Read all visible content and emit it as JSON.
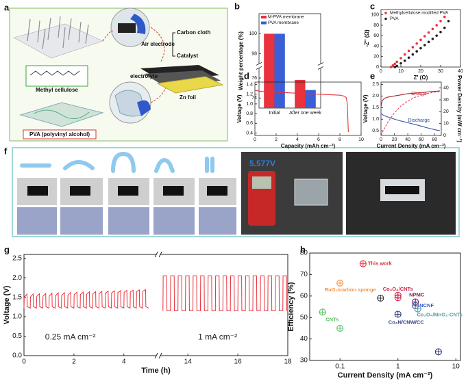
{
  "panel_labels": [
    "a",
    "b",
    "c",
    "d",
    "e",
    "f",
    "g",
    "h"
  ],
  "diagram": {
    "air_electrode": "Air electrode",
    "carbon_cloth": "Carbon cloth",
    "catalyst": "Catalyst",
    "electrolyte": "electrolyte",
    "zn_foil": "Zn foil",
    "methyl_cellulose": "Methyl cellulose",
    "pva": "PVA (polyvinyl alcohol)"
  },
  "photos": {
    "voltage_reading": "5.577V"
  },
  "chart_data": [
    {
      "type": "bar",
      "ylabel": "Weight percentage (%)",
      "categories": [
        "Initial",
        "After one week"
      ],
      "series": [
        {
          "name": "M-PVA membrane",
          "color": "#e8323c",
          "values": [
            100,
            75.8
          ]
        },
        {
          "name": "PVA membrane",
          "color": "#3a5fd6",
          "values": [
            100,
            74.8
          ]
        }
      ],
      "ylim": [
        73,
        102
      ],
      "ybreak": [
        77,
        97
      ],
      "yticks": [
        74,
        76,
        98,
        100
      ],
      "legend": "upper left"
    },
    {
      "type": "scatter",
      "xlabel": "Z' (Ω)",
      "ylabel": "-Z'' (Ω)",
      "series": [
        {
          "name": "Methylcellulose modified PVA",
          "color": "#e8323c",
          "x": [
            5,
            6,
            7,
            8,
            10,
            12,
            14,
            16,
            18,
            20,
            22,
            24,
            26,
            28,
            30,
            32
          ],
          "values": [
            0,
            3,
            6,
            10,
            17,
            24,
            31,
            38,
            45,
            52,
            59,
            66,
            73,
            80,
            88,
            96
          ]
        },
        {
          "name": "PVA",
          "color": "#222222",
          "x": [
            7,
            8,
            10,
            12,
            14,
            16,
            18,
            20,
            22,
            24,
            26,
            28,
            30,
            32,
            34
          ],
          "values": [
            0,
            2,
            7,
            12,
            18,
            24,
            30,
            36,
            42,
            48,
            54,
            60,
            67,
            75,
            88
          ]
        }
      ],
      "xlim": [
        0,
        40
      ],
      "xticks": [
        0,
        10,
        20,
        30,
        40
      ],
      "ylim": [
        0,
        110
      ],
      "yticks": [
        0,
        20,
        40,
        60,
        80,
        100
      ],
      "legend": "upper left"
    },
    {
      "type": "line",
      "xlabel": "Capacity (mAh cm⁻²)",
      "ylabel": "Voltage (V)",
      "x": [
        0,
        0.5,
        1,
        2,
        3,
        4,
        5,
        6,
        7,
        8,
        8.4,
        8.6,
        8.7,
        8.75,
        8.8
      ],
      "series": [
        {
          "color": "#e8323c",
          "values": [
            1.28,
            1.26,
            1.25,
            1.24,
            1.23,
            1.22,
            1.21,
            1.2,
            1.19,
            1.18,
            1.16,
            1.13,
            1.0,
            0.7,
            0.42
          ]
        }
      ],
      "xlim": [
        0,
        10
      ],
      "xticks": [
        0,
        2,
        4,
        6,
        8,
        10
      ],
      "ylim": [
        0.35,
        1.45
      ],
      "yticks": [
        0.4,
        0.6,
        0.8,
        {
          "value": 1,
          "label": "1.0"
        },
        1.2,
        1.4
      ]
    },
    {
      "type": "line",
      "xlabel": "Current Density (mA cm⁻²)",
      "ylabel": "Voltage (V)",
      "y2label": "Power Density (mW cm⁻²)",
      "x": [
        0,
        2,
        5,
        10,
        20,
        30,
        40,
        50,
        60,
        70,
        80,
        88
      ],
      "series": [
        {
          "color": "#b0202a",
          "values": [
            1.55,
            1.8,
            1.9,
            1.95,
            2.0,
            2.05,
            2.1,
            2.12,
            2.15,
            2.18,
            2.2,
            2.22
          ]
        },
        {
          "color": "#3050a0",
          "values": [
            1.25,
            1.2,
            1.15,
            1.1,
            1.0,
            0.92,
            0.85,
            0.78,
            0.7,
            0.62,
            0.55,
            0.5
          ]
        },
        {
          "color": "#e04050",
          "dash": true,
          "axis": "y2",
          "values": [
            0,
            2.4,
            5.7,
            11,
            19,
            25,
            29,
            32,
            34,
            35.5,
            36.5,
            37
          ]
        }
      ],
      "annotations": [
        {
          "text": "Charge",
          "color": "#c0202a"
        },
        {
          "text": "Discharge",
          "color": "#3050a0"
        }
      ],
      "xlim": [
        0,
        90
      ],
      "xticks": [
        0,
        20,
        40,
        60,
        80
      ],
      "ylim": [
        0.3,
        2.6
      ],
      "yticks": [
        0.5,
        {
          "value": 1,
          "label": "1.0"
        },
        1.5,
        {
          "value": 2,
          "label": "2.0"
        },
        2.5
      ],
      "y2lim": [
        0,
        45
      ],
      "y2ticks": [
        0,
        10,
        20,
        30,
        40
      ]
    },
    {
      "type": "line",
      "xlabel": "Time (h)",
      "ylabel": "Voltage (V)",
      "x": [
        0,
        0.01,
        0.12,
        0.13,
        0.25,
        0.26,
        0.37,
        0.38,
        0.5,
        0.51,
        0.62,
        0.63,
        0.75,
        0.76,
        0.87,
        0.88,
        1,
        1.01,
        1.12,
        1.13,
        1.25,
        1.26,
        1.37,
        1.38,
        1.5,
        1.51,
        1.62,
        1.63,
        1.75,
        1.76,
        1.87,
        1.88,
        2,
        2.01,
        2.12,
        2.13,
        2.25,
        2.26,
        2.37,
        2.38,
        2.5,
        2.51,
        2.62,
        2.63,
        2.75,
        2.76,
        2.87,
        2.88,
        3,
        3.01,
        3.12,
        3.13,
        3.25,
        3.26,
        3.37,
        3.38,
        3.5,
        3.51,
        3.62,
        3.63,
        3.75,
        3.76,
        3.87,
        3.88,
        4,
        4.01,
        4.12,
        4.13,
        4.25,
        4.26,
        4.37,
        4.38,
        4.5,
        4.51,
        4.62,
        4.63,
        4.75,
        4.76,
        4.87,
        4.88,
        5,
        9,
        13,
        13.01,
        13.15,
        13.16,
        13.3,
        13.31,
        13.45,
        13.46,
        13.6,
        13.61,
        13.75,
        13.76,
        13.9,
        13.91,
        14.05,
        14.06,
        14.2,
        14.21,
        14.35,
        14.36,
        14.5,
        14.51,
        14.65,
        14.66,
        14.8,
        14.81,
        14.95,
        14.96,
        15.1,
        15.11,
        15.25,
        15.26,
        15.4,
        15.41,
        15.55,
        15.56,
        15.7,
        15.71,
        15.85,
        15.86,
        16,
        16.01,
        16.15,
        16.16,
        16.3,
        16.31,
        16.45,
        16.46,
        16.6,
        16.61,
        16.75,
        16.76,
        16.9,
        16.91,
        17.05,
        17.06,
        17.2,
        17.21,
        17.35,
        17.36,
        17.5,
        17.51,
        17.65,
        17.66,
        17.8,
        17.81,
        17.95,
        17.96
      ],
      "series": [
        {
          "color": "#e8323c",
          "values": [
            1.22,
            1.5,
            1.58,
            1.26,
            1.22,
            1.508,
            1.586,
            1.26,
            1.22,
            1.516,
            1.592,
            1.26,
            1.22,
            1.524,
            1.598,
            1.26,
            1.22,
            1.532,
            1.604,
            1.26,
            1.22,
            1.54,
            1.61,
            1.26,
            1.22,
            1.548,
            1.616,
            1.26,
            1.22,
            1.556,
            1.622,
            1.26,
            1.22,
            1.564,
            1.628,
            1.26,
            1.22,
            1.572,
            1.634,
            1.26,
            1.22,
            1.58,
            1.64,
            1.26,
            1.22,
            1.588,
            1.646,
            1.26,
            1.22,
            1.596,
            1.652,
            1.26,
            1.22,
            1.604,
            1.658,
            1.26,
            1.22,
            1.612,
            1.664,
            1.26,
            1.22,
            1.62,
            1.67,
            1.26,
            1.22,
            1.628,
            1.676,
            1.26,
            1.22,
            1.636,
            1.682,
            1.26,
            1.22,
            1.644,
            1.688,
            1.26,
            1.22,
            1.652,
            1.694,
            1.26,
            1.22,
            null,
            1.15,
            2.05,
            2.05,
            1.15,
            1.15,
            2.05,
            2.05,
            1.15,
            1.15,
            2.05,
            2.05,
            1.15,
            1.15,
            2.05,
            2.05,
            1.15,
            1.15,
            2.05,
            2.05,
            1.15,
            1.15,
            2.05,
            2.05,
            1.15,
            1.15,
            2.05,
            2.05,
            1.15,
            1.15,
            2.05,
            2.05,
            1.15,
            1.15,
            2.05,
            2.05,
            1.15,
            1.15,
            2.05,
            2.05,
            1.15,
            1.15,
            2.05,
            2.05,
            1.15,
            1.15,
            2.05,
            2.05,
            1.15,
            1.15,
            2.05,
            2.05,
            1.15,
            1.15,
            2.05,
            2.05,
            1.15,
            1.15,
            2.05,
            2.05,
            1.15,
            1.15,
            2.05,
            2.05,
            1.15,
            1.15,
            2.05,
            2.05,
            1.15
          ]
        }
      ],
      "annotations": [
        {
          "text": "0.25 mA cm⁻²",
          "color": "#222222"
        },
        {
          "text": "1 mA cm⁻²",
          "color": "#222222"
        }
      ],
      "xlim": [
        0,
        18
      ],
      "xbreak": [
        5.3,
        12.9
      ],
      "xticks": [
        0,
        2,
        4,
        14,
        16,
        18
      ],
      "ylim": [
        0,
        2.6
      ],
      "yticks": [
        {
          "value": 0,
          "label": "0.0"
        },
        0.5,
        {
          "value": 1,
          "label": "1.0"
        },
        1.5,
        {
          "value": 2,
          "label": "2.0"
        },
        2.5
      ]
    },
    {
      "type": "scatter",
      "xlabel": "Current Density (mA cm⁻²)",
      "ylabel": "Efficiency (%)",
      "xlog": true,
      "marker": "circle-plus",
      "points": [
        {
          "label": "This work",
          "x": 0.25,
          "y": 75,
          "color": "#e0303a"
        },
        {
          "label": "RuO₂/carbon sponge",
          "x": 0.1,
          "y": 66,
          "color": "#f0944a"
        },
        {
          "label": "Co₃O₄/CNTs",
          "x": 1,
          "y": 60.3,
          "color": "#d02a50"
        },
        {
          "x": 1,
          "y": 59.2,
          "color": "#d02a50"
        },
        {
          "x": 0.5,
          "y": 59,
          "color": "#333333"
        },
        {
          "label": "NPMC",
          "x": 2,
          "y": 57.2,
          "color": "#6a1e4a"
        },
        {
          "label": "NCNF",
          "x": 2,
          "y": 55.5,
          "color": "#3a55c8"
        },
        {
          "label": "Co₃O₄/MnO₂-CNTs",
          "x": 2.2,
          "y": 54,
          "color": "#5a9ea6"
        },
        {
          "label": "CNTs",
          "x": 0.05,
          "y": 52.5,
          "color": "#5cbf68"
        },
        {
          "x": 0.1,
          "y": 45,
          "color": "#5cbf68"
        },
        {
          "label": "Co₄N/CNW/CC",
          "x": 1,
          "y": 51.5,
          "color": "#2c3a7a"
        },
        {
          "x": 5,
          "y": 34,
          "color": "#2c3a7a"
        }
      ],
      "xlim": [
        0.03,
        12
      ],
      "xticks": [
        0.1,
        1,
        10
      ],
      "ylim": [
        30,
        80
      ],
      "yticks": [
        30,
        40,
        50,
        60,
        70,
        80
      ]
    }
  ]
}
